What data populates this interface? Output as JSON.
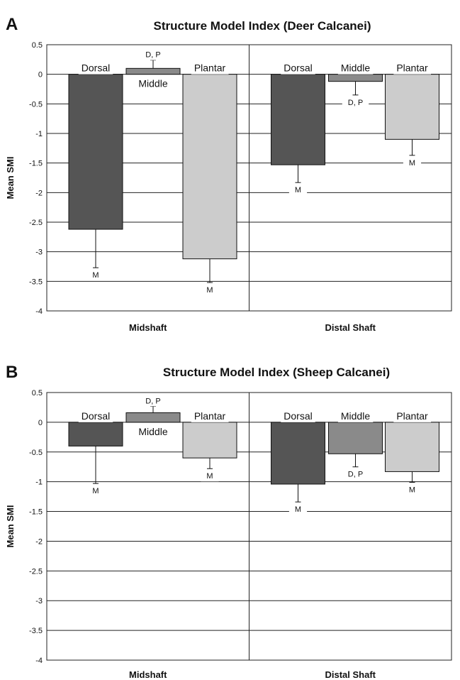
{
  "chart_data": [
    {
      "type": "bar",
      "panel": "A",
      "title": "Structure Model Index (Deer Calcanei)",
      "ylabel": "Mean SMI",
      "xlabel": "",
      "ylim": [
        -4,
        0.5
      ],
      "yticks": [
        "0.5",
        "0",
        "-0.5",
        "-1",
        "-1.5",
        "-2",
        "-2.5",
        "-3",
        "-3.5",
        "-4"
      ],
      "grid": true,
      "groups": [
        "Midshaft",
        "Distal Shaft"
      ],
      "series": [
        {
          "name": "Dorsal",
          "values": [
            -2.62,
            -1.53
          ],
          "errors": [
            0.65,
            0.3
          ],
          "color": "#555555"
        },
        {
          "name": "Middle",
          "values": [
            0.1,
            -0.12
          ],
          "errors": [
            0.14,
            0.23
          ],
          "color": "#8a8a8a"
        },
        {
          "name": "Plantar",
          "values": [
            -3.12,
            -1.1
          ],
          "errors": [
            0.4,
            0.27
          ],
          "color": "#cccccc"
        }
      ],
      "bar_labels": [
        [
          "Dorsal",
          "Middle",
          "Plantar"
        ],
        [
          "Dorsal",
          "Middle",
          "Plantar"
        ]
      ],
      "annotations": [
        [
          "M",
          "D, P",
          "M"
        ],
        [
          "M",
          "D, P",
          "M"
        ]
      ]
    },
    {
      "type": "bar",
      "panel": "B",
      "title": "Structure Model Index (Sheep Calcanei)",
      "ylabel": "Mean SMI",
      "xlabel": "",
      "ylim": [
        -4,
        0.5
      ],
      "yticks": [
        "0.5",
        "0",
        "-0.5",
        "-1",
        "-1.5",
        "-2",
        "-2.5",
        "-3",
        "-3.5",
        "-4"
      ],
      "grid": true,
      "groups": [
        "Midshaft",
        "Distal Shaft"
      ],
      "series": [
        {
          "name": "Dorsal",
          "values": [
            -0.4,
            -1.04
          ],
          "errors": [
            0.63,
            0.3
          ],
          "color": "#555555"
        },
        {
          "name": "Middle",
          "values": [
            0.16,
            -0.53
          ],
          "errors": [
            0.11,
            0.22
          ],
          "color": "#8a8a8a"
        },
        {
          "name": "Plantar",
          "values": [
            -0.6,
            -0.83
          ],
          "errors": [
            0.18,
            0.18
          ],
          "color": "#cccccc"
        }
      ],
      "bar_labels": [
        [
          "Dorsal",
          "Middle",
          "Plantar"
        ],
        [
          "Dorsal",
          "Middle",
          "Plantar"
        ]
      ],
      "annotations": [
        [
          "M",
          "D, P",
          "M"
        ],
        [
          "M",
          "D, P",
          "M"
        ]
      ]
    }
  ]
}
